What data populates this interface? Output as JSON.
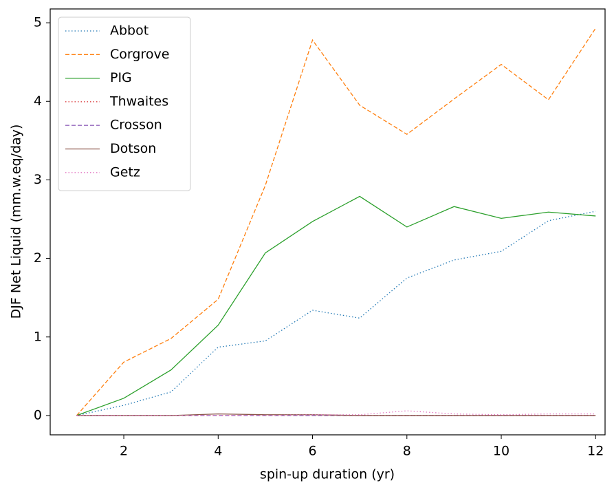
{
  "chart_data": {
    "type": "line",
    "xlabel": "spin-up duration (yr)",
    "ylabel": "DJF Net Liquid (mm.w.eq/day)",
    "x": [
      1,
      2,
      3,
      4,
      5,
      6,
      7,
      8,
      9,
      10,
      11,
      12
    ],
    "series": [
      {
        "name": "Abbot",
        "color": "#1f77b4",
        "dash": "dotted",
        "values": [
          0,
          0.13,
          0.3,
          0.87,
          0.95,
          1.34,
          1.24,
          1.75,
          1.98,
          2.09,
          2.48,
          2.6
        ]
      },
      {
        "name": "Corgrove",
        "color": "#ff7f0e",
        "dash": "dashed",
        "values": [
          0,
          0.68,
          0.98,
          1.48,
          2.93,
          4.78,
          3.95,
          3.58,
          4.03,
          4.47,
          4.02,
          4.93
        ]
      },
      {
        "name": "PIG",
        "color": "#2ca02c",
        "dash": "solid",
        "values": [
          0,
          0.22,
          0.58,
          1.15,
          2.07,
          2.47,
          2.79,
          2.4,
          2.66,
          2.51,
          2.59,
          2.54
        ]
      },
      {
        "name": "Thwaites",
        "color": "#d62728",
        "dash": "dotted",
        "values": [
          0,
          0,
          0,
          0,
          0,
          0,
          0,
          0,
          0,
          0,
          0,
          0
        ]
      },
      {
        "name": "Crosson",
        "color": "#9467bd",
        "dash": "dashed",
        "values": [
          0,
          0,
          0,
          0,
          0,
          0,
          0,
          0,
          0,
          0,
          0,
          0
        ]
      },
      {
        "name": "Dotson",
        "color": "#8c564b",
        "dash": "solid",
        "values": [
          0,
          0,
          0,
          0.02,
          0.01,
          0.01,
          0,
          0,
          0,
          0,
          0,
          0
        ]
      },
      {
        "name": "Getz",
        "color": "#e377c2",
        "dash": "dotted",
        "values": [
          0,
          0,
          0,
          0,
          0,
          0.01,
          0.01,
          0.06,
          0.02,
          0.01,
          0.02,
          0.02
        ]
      }
    ],
    "xlim": [
      0.44,
      12.2
    ],
    "ylim": [
      -0.246,
      5.176
    ],
    "xticks": [
      2,
      4,
      6,
      8,
      10,
      12
    ],
    "yticks": [
      0,
      1,
      2,
      3,
      4,
      5
    ],
    "legend": "upper left"
  }
}
